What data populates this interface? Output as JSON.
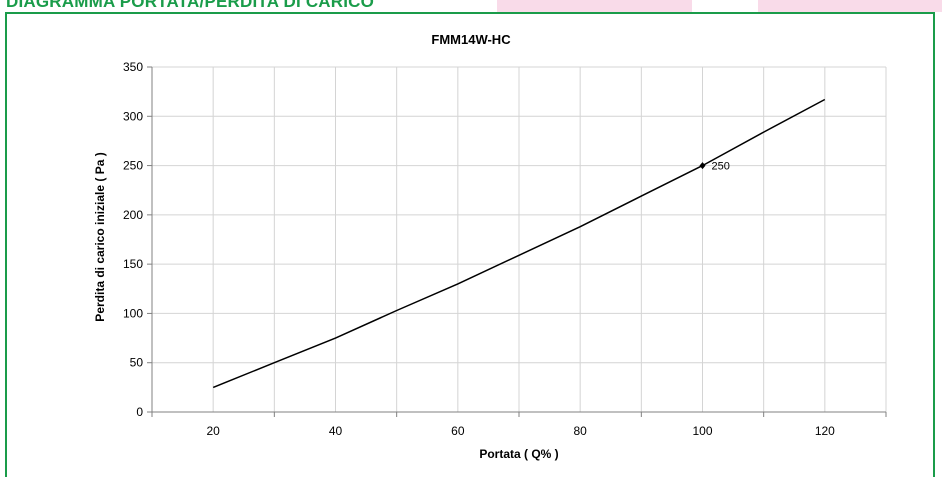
{
  "header": {
    "heading": "DIAGRAMMA PORTATA/PERDITA DI CARICO"
  },
  "chart_data": {
    "type": "line",
    "title": "FMM14W-HC",
    "xlabel": "Portata ( Q% )",
    "ylabel": "Perdita di carico iniziale ( Pa )",
    "xlim": [
      10,
      130
    ],
    "ylim": [
      0,
      350
    ],
    "x_ticks": [
      20,
      40,
      60,
      80,
      100,
      120
    ],
    "y_ticks": [
      0,
      50,
      100,
      150,
      200,
      250,
      300,
      350
    ],
    "grid": true,
    "series": [
      {
        "x": [
          20,
          30,
          40,
          50,
          60,
          70,
          80,
          90,
          100,
          110,
          120
        ],
        "values": [
          25,
          50,
          75,
          103,
          130,
          159,
          188,
          219,
          250,
          284,
          317
        ],
        "color": "#000000"
      }
    ],
    "annotations": [
      {
        "x": 100,
        "y": 250,
        "text": "250"
      }
    ]
  }
}
